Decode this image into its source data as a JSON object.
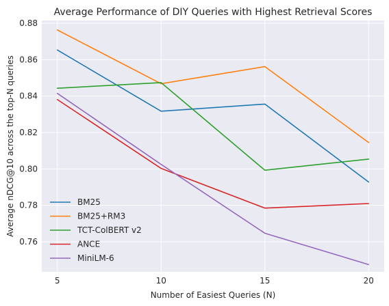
{
  "chart_data": {
    "type": "line",
    "title": "Average Performance of DIY Queries with Highest Retrieval Scores",
    "xlabel": "Number of Easiest Queries (N)",
    "ylabel": "Average nDCG@10 across the top-N queries",
    "x": [
      5,
      10,
      15,
      20
    ],
    "x_ticks": [
      5,
      10,
      15,
      20
    ],
    "y_ticks": [
      0.76,
      0.78,
      0.8,
      0.82,
      0.84,
      0.86,
      0.88
    ],
    "y_tick_labels": [
      "0.76",
      "0.78",
      "0.80",
      "0.82",
      "0.84",
      "0.86",
      "0.88"
    ],
    "xlim": [
      4.25,
      20.75
    ],
    "ylim": [
      0.7435,
      0.8815
    ],
    "grid": true,
    "legend_position": "lower-left",
    "series": [
      {
        "name": "BM25",
        "color": "#1f77b4",
        "values": [
          0.8653,
          0.8317,
          0.8356,
          0.7928
        ]
      },
      {
        "name": "BM25+RM3",
        "color": "#ff7f0e",
        "values": [
          0.8763,
          0.8468,
          0.8562,
          0.8145
        ]
      },
      {
        "name": "TCT-ColBERT v2",
        "color": "#2ca02c",
        "values": [
          0.8443,
          0.8474,
          0.7993,
          0.8054
        ]
      },
      {
        "name": "ANCE",
        "color": "#d62728",
        "values": [
          0.8381,
          0.8003,
          0.7785,
          0.781
        ]
      },
      {
        "name": "MiniLM-6",
        "color": "#9467bd",
        "values": [
          0.8415,
          0.8025,
          0.7647,
          0.7475
        ]
      }
    ]
  }
}
